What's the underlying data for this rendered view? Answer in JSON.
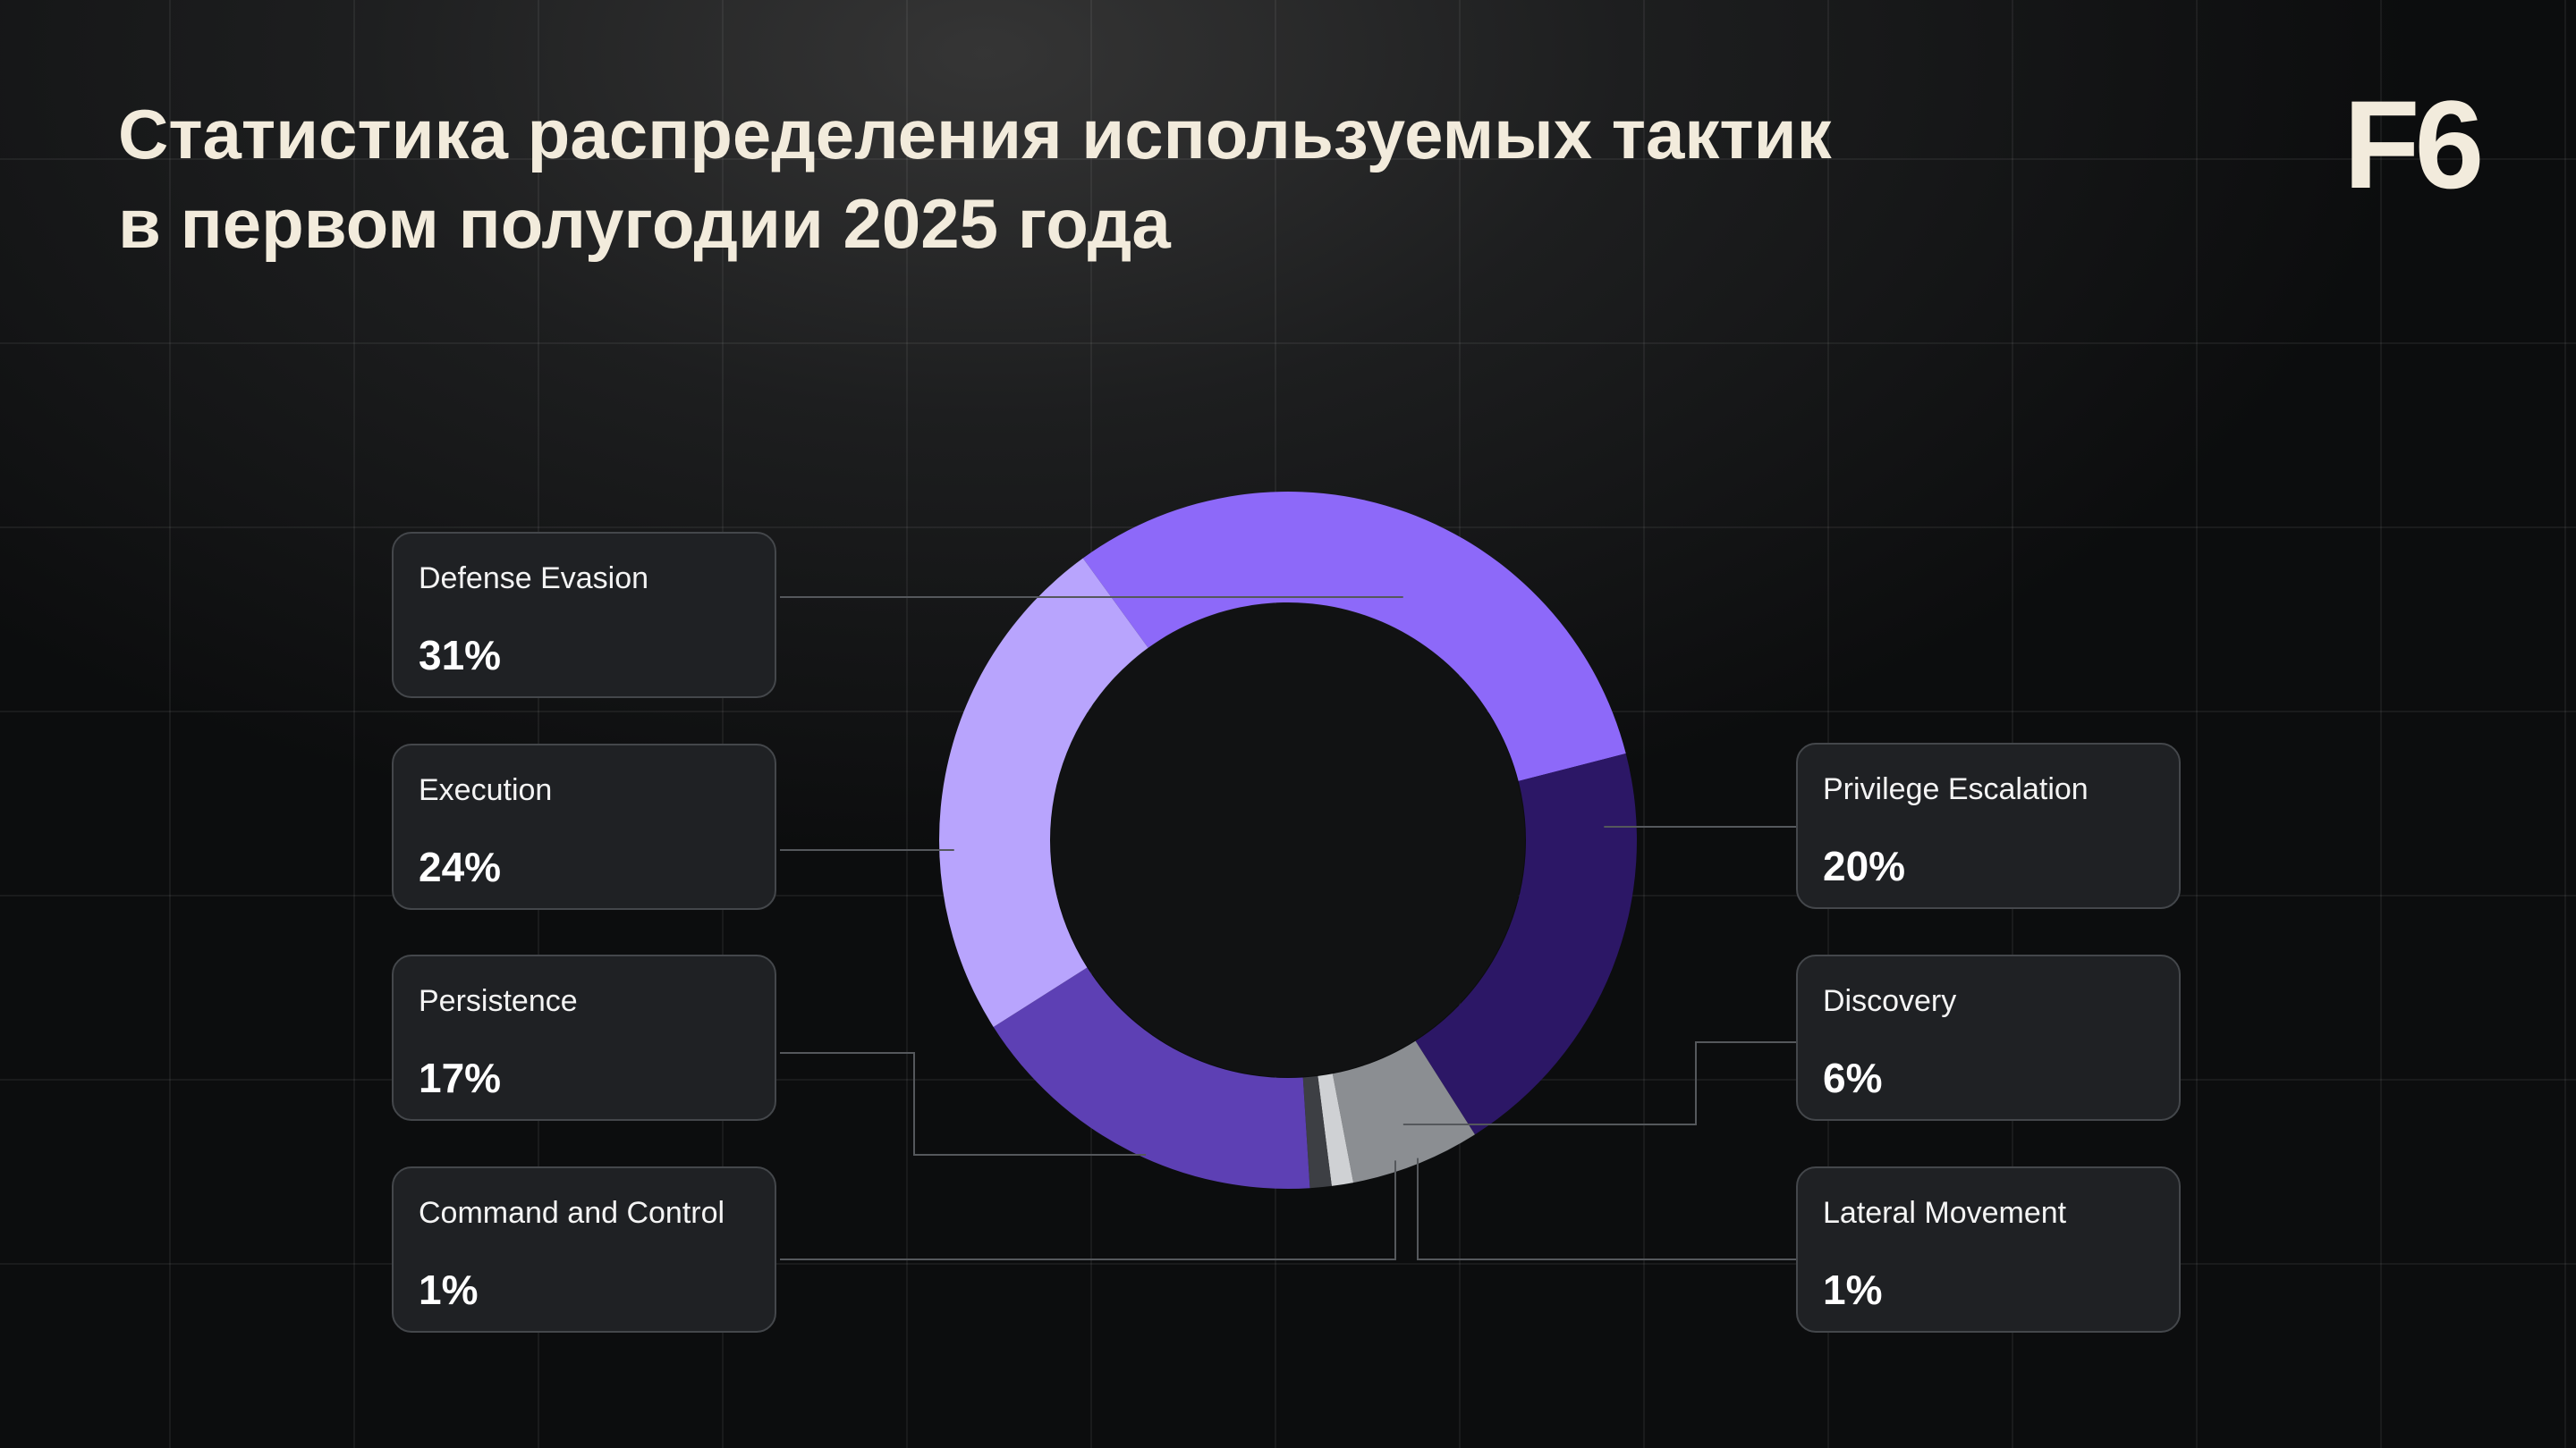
{
  "title_lines": [
    "Статистика распределения используемых тактик",
    "в первом полугодии 2025 года"
  ],
  "logo": "F6",
  "chart_data": {
    "type": "pie",
    "donut": true,
    "legend": "callout cards left and right of the donut",
    "slices": [
      {
        "label": "Defense Evasion",
        "value": 31,
        "display": "31%",
        "color": "#8d69f9"
      },
      {
        "label": "Privilege Escalation",
        "value": 20,
        "display": "20%",
        "color": "#2c1766"
      },
      {
        "label": "Discovery",
        "value": 6,
        "display": "6%",
        "color": "#8b8e92"
      },
      {
        "label": "Lateral Movement",
        "value": 1,
        "display": "1%",
        "color": "#cfd1d4"
      },
      {
        "label": "Command and Control",
        "value": 1,
        "display": "1%",
        "color": "#3d3f44"
      },
      {
        "label": "Persistence",
        "value": 17,
        "display": "17%",
        "color": "#5d40b4"
      },
      {
        "label": "Execution",
        "value": 24,
        "display": "24%",
        "color": "#b8a4fd"
      }
    ]
  }
}
